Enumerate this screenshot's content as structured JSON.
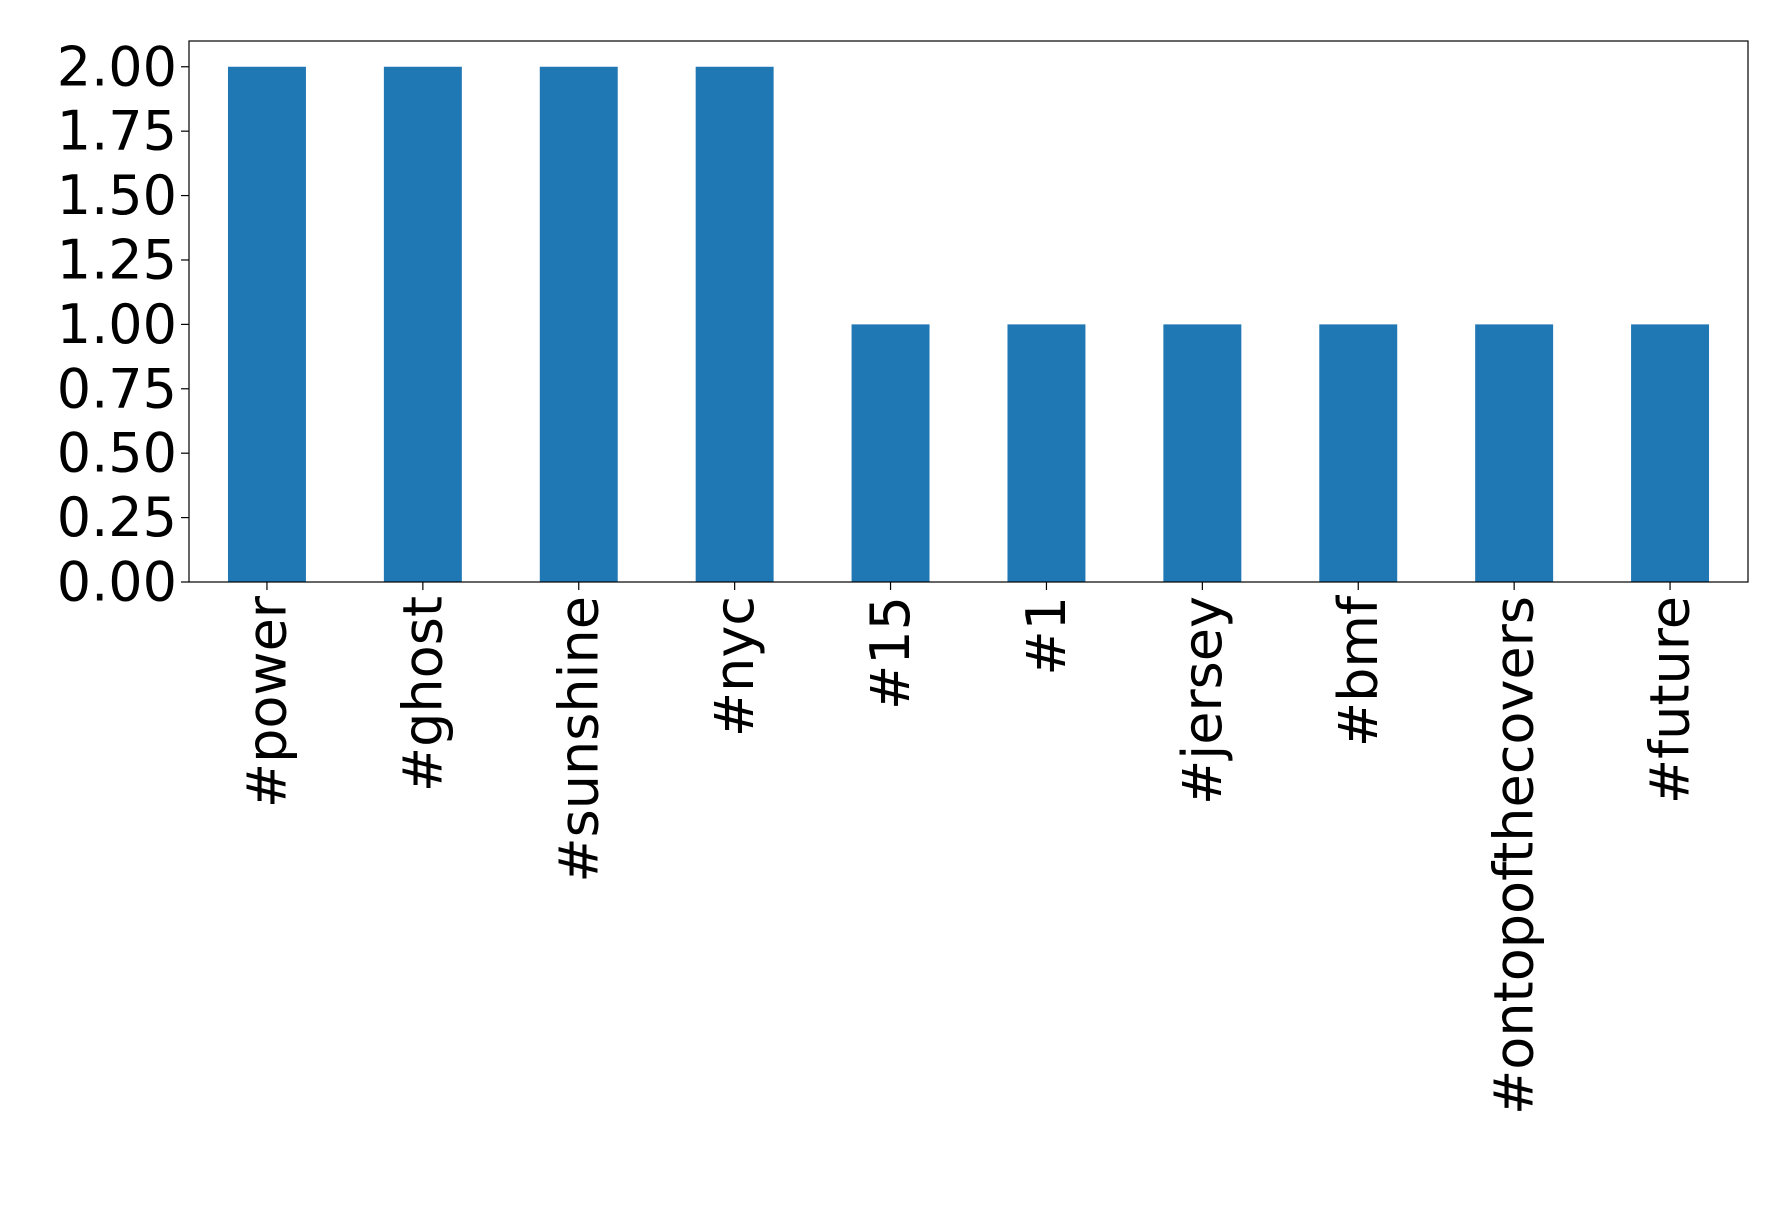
{
  "chart_data": {
    "type": "bar",
    "categories": [
      "#power",
      "#ghost",
      "#sunshine",
      "#nyc",
      "#15",
      "#1",
      "#jersey",
      "#bmf",
      "#ontopofthecovers",
      "#future"
    ],
    "values": [
      2,
      2,
      2,
      2,
      1,
      1,
      1,
      1,
      1,
      1
    ],
    "color": "#1f77b4",
    "ylim": [
      0,
      2.1
    ],
    "yticks": [
      {
        "value": 0,
        "label": "0.00"
      },
      {
        "value": 0.25,
        "label": "0.25"
      },
      {
        "value": 0.5,
        "label": "0.50"
      },
      {
        "value": 0.75,
        "label": "0.75"
      },
      {
        "value": 1,
        "label": "1.00"
      },
      {
        "value": 1.25,
        "label": "1.25"
      },
      {
        "value": 1.5,
        "label": "1.50"
      },
      {
        "value": 1.75,
        "label": "1.75"
      },
      {
        "value": 2,
        "label": "2.00"
      }
    ],
    "grid": false
  }
}
